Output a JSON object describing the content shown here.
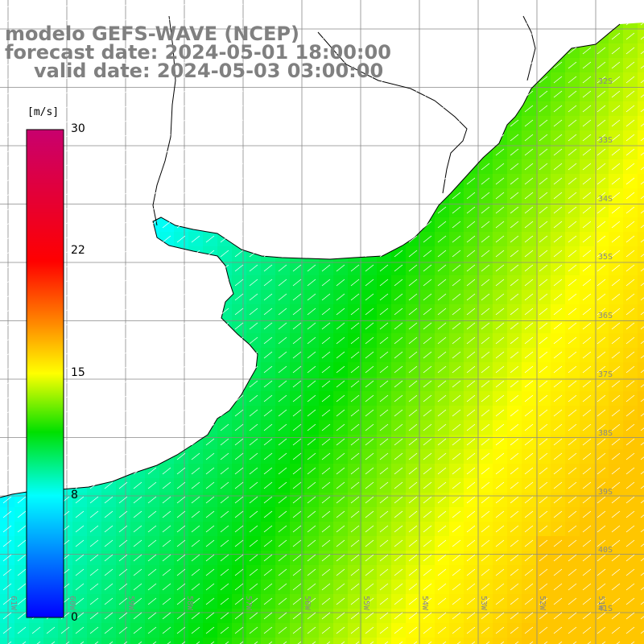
{
  "title": {
    "line1": "modelo GEFS-WAVE (NCEP)",
    "line2": "forecast date: 2024-05-01 18:00:00",
    "line3": "valid date: 2024-05-03 03:00:00"
  },
  "colorbar": {
    "unit": "[m/s]",
    "min": 0,
    "max": 30,
    "ticks": [
      "30",
      "22",
      "15",
      "8",
      "0"
    ],
    "colors": [
      "#c8006e",
      "#ff0000",
      "#ff8c00",
      "#ffff00",
      "#00e000",
      "#00ffff",
      "#0000ff"
    ]
  },
  "map": {
    "land_color": "#ffffff",
    "coast_color": "#000000",
    "grid_color": "#888888",
    "lat_labels": [
      "32S",
      "33S",
      "34S",
      "35S",
      "36S",
      "37S",
      "38S",
      "39S",
      "40S",
      "41S"
    ],
    "lon_labels": [
      "61W",
      "60W",
      "59W",
      "58W",
      "57W",
      "56W",
      "55W",
      "54W",
      "53W",
      "52W",
      "51W"
    ]
  }
}
